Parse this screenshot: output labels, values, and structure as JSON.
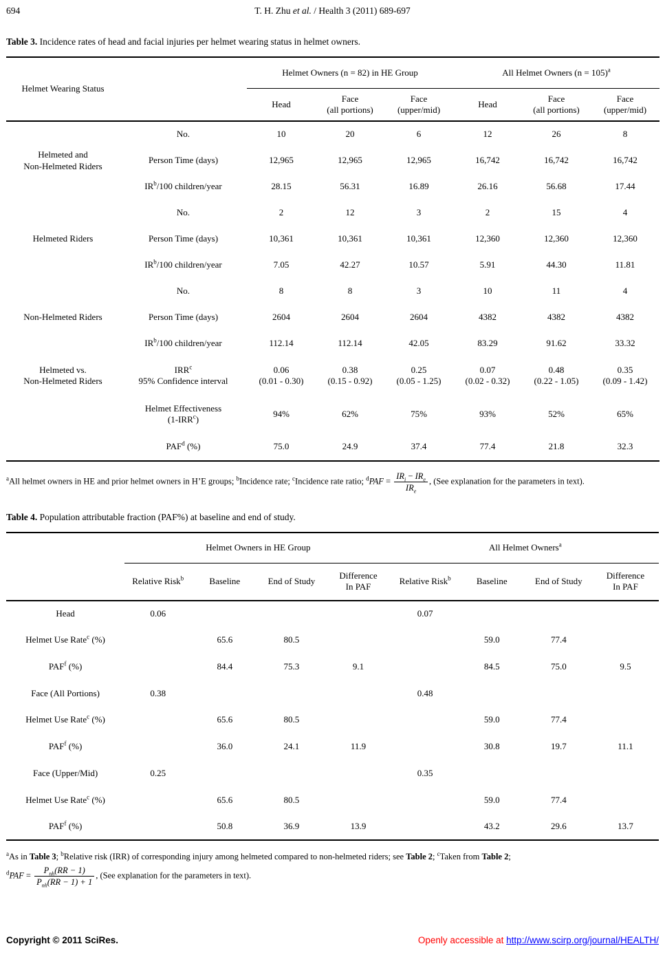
{
  "colors": {
    "text": "#000000",
    "open_access_red": "#ff0000",
    "link_blue": "#0000ff"
  },
  "header": {
    "page_number": "694",
    "running_head_pre": "T. H. Zhu ",
    "running_head_italic": "et al.",
    "running_head_post": " / Health 3 (2011) 689-697"
  },
  "table3": {
    "caption_label": "Table 3.",
    "caption_text": " Incidence rates of head and facial injuries per helmet wearing status in helmet owners.",
    "stub_header": "Helmet Wearing Status",
    "group1_title": "Helmet Owners (n = 82) in HE Group",
    "group2_title": "All Helmet Owners (n = 105)",
    "group2_sup": "a",
    "cols": [
      {
        "l1": "Head",
        "l2": ""
      },
      {
        "l1": "Face",
        "l2": "(all portions)"
      },
      {
        "l1": "Face",
        "l2": "(upper/mid)"
      },
      {
        "l1": "Head",
        "l2": ""
      },
      {
        "l1": "Face",
        "l2": "(all portions)"
      },
      {
        "l1": "Face",
        "l2": "(upper/mid)"
      }
    ],
    "row_labels": {
      "no": "No.",
      "person_time": "Person Time (days)",
      "ir_pre": "IR",
      "ir_sup": "b",
      "ir_post": "/100 children/year",
      "irr_pre": "IRR",
      "irr_sup": "c",
      "ci": "95% Confidence interval",
      "eff_l1": "Helmet Effectiveness",
      "eff_l2_pre": "(1-IRR",
      "eff_l2_sup": "c",
      "eff_l2_post": ")",
      "paf_pre": "PAF",
      "paf_sup": "d",
      "paf_post": " (%)"
    },
    "groups": [
      {
        "label_l1": "Helmeted and",
        "label_l2": "Non-Helmeted Riders",
        "no": [
          "10",
          "20",
          "6",
          "12",
          "26",
          "8"
        ],
        "person_time": [
          "12,965",
          "12,965",
          "12,965",
          "16,742",
          "16,742",
          "16,742"
        ],
        "ir": [
          "28.15",
          "56.31",
          "16.89",
          "26.16",
          "56.68",
          "17.44"
        ]
      },
      {
        "label_l1": "Helmeted Riders",
        "label_l2": "",
        "no": [
          "2",
          "12",
          "3",
          "2",
          "15",
          "4"
        ],
        "person_time": [
          "10,361",
          "10,361",
          "10,361",
          "12,360",
          "12,360",
          "12,360"
        ],
        "ir": [
          "7.05",
          "42.27",
          "10.57",
          "5.91",
          "44.30",
          "11.81"
        ]
      },
      {
        "label_l1": "Non-Helmeted Riders",
        "label_l2": "",
        "no": [
          "8",
          "8",
          "3",
          "10",
          "11",
          "4"
        ],
        "person_time": [
          "2604",
          "2604",
          "2604",
          "4382",
          "4382",
          "4382"
        ],
        "ir": [
          "112.14",
          "112.14",
          "42.05",
          "83.29",
          "91.62",
          "33.32"
        ]
      }
    ],
    "comparison": {
      "label_l1": "Helmeted vs.",
      "label_l2": "Non-Helmeted Riders",
      "irr": [
        "0.06",
        "0.38",
        "0.25",
        "0.07",
        "0.48",
        "0.35"
      ],
      "ci": [
        "(0.01 - 0.30)",
        "(0.15 - 0.92)",
        "(0.05 - 1.25)",
        "(0.02 - 0.32)",
        "(0.22 - 1.05)",
        "(0.09 - 1.42)"
      ],
      "effectiveness": [
        "94%",
        "62%",
        "75%",
        "93%",
        "52%",
        "65%"
      ],
      "paf": [
        "75.0",
        "24.9",
        "37.4",
        "77.4",
        "21.8",
        "32.3"
      ]
    },
    "footnote": {
      "sup_a": "a",
      "text_a": "All helmet owners in HE and prior helmet owners in H’E groups; ",
      "sup_b": "b",
      "text_b": "Incidence rate; ",
      "sup_c": "c",
      "text_c": "Incidence rate ratio; ",
      "sup_d": "d",
      "formula_paf": "PAF",
      "formula_eq": " = ",
      "num_p1": "IR",
      "num_sub1": "i",
      "num_minus": " − ",
      "num_p2": "IR",
      "num_sub2": "e",
      "den_p": "IR",
      "den_sub": "e",
      "tail": ", (See explanation for the parameters in text)."
    }
  },
  "table4": {
    "caption_label": "Table 4.",
    "caption_text": " Population attributable fraction (PAF%) at baseline and end of study.",
    "group1_title": "Helmet Owners in HE Group",
    "group2_title": "All Helmet Owners",
    "group2_sup": "a",
    "col_rr": "Relative Risk",
    "col_rr_sup": "b",
    "col_baseline": "Baseline",
    "col_end": "End of Study",
    "col_diff_l1": "Difference",
    "col_diff_l2": "In PAF",
    "rows": [
      {
        "label_pre": "Head",
        "label_sup": "",
        "label_post": "",
        "values": [
          "0.06",
          "",
          "",
          "",
          "0.07",
          "",
          "",
          ""
        ]
      },
      {
        "label_pre": "Helmet Use Rate",
        "label_sup": "c",
        "label_post": " (%)",
        "values": [
          "",
          "65.6",
          "80.5",
          "",
          "",
          "59.0",
          "77.4",
          ""
        ]
      },
      {
        "label_pre": "PAF",
        "label_sup": "f",
        "label_post": " (%)",
        "values": [
          "",
          "84.4",
          "75.3",
          "9.1",
          "",
          "84.5",
          "75.0",
          "9.5"
        ]
      },
      {
        "label_pre": "Face (All Portions)",
        "label_sup": "",
        "label_post": "",
        "values": [
          "0.38",
          "",
          "",
          "",
          "0.48",
          "",
          "",
          ""
        ]
      },
      {
        "label_pre": "Helmet Use Rate",
        "label_sup": "c",
        "label_post": " (%)",
        "values": [
          "",
          "65.6",
          "80.5",
          "",
          "",
          "59.0",
          "77.4",
          ""
        ]
      },
      {
        "label_pre": "PAF",
        "label_sup": "f",
        "label_post": " (%)",
        "values": [
          "",
          "36.0",
          "24.1",
          "11.9",
          "",
          "30.8",
          "19.7",
          "11.1"
        ]
      },
      {
        "label_pre": "Face (Upper/Mid)",
        "label_sup": "",
        "label_post": "",
        "values": [
          "0.25",
          "",
          "",
          "",
          "0.35",
          "",
          "",
          ""
        ]
      },
      {
        "label_pre": "Helmet Use Rate",
        "label_sup": "c",
        "label_post": " (%)",
        "values": [
          "",
          "65.6",
          "80.5",
          "",
          "",
          "59.0",
          "77.4",
          ""
        ]
      },
      {
        "label_pre": "PAF",
        "label_sup": "f",
        "label_post": " (%)",
        "values": [
          "",
          "50.8",
          "36.9",
          "13.9",
          "",
          "43.2",
          "29.6",
          "13.7"
        ]
      }
    ],
    "footnote": {
      "sup_a": "a",
      "text_a1": "As in ",
      "bold_a": "Table 3",
      "text_a2": "; ",
      "sup_b": "b",
      "text_b1": "Relative risk (IRR) of corresponding injury among helmeted compared to non-helmeted riders; see ",
      "bold_b": "Table 2",
      "text_b2": "; ",
      "sup_c": "c",
      "text_c1": "Taken from ",
      "bold_c": "Table 2",
      "text_c2": ";",
      "sup_d": "d",
      "formula_paf": "PAF",
      "formula_eq": " = ",
      "num_p": "P",
      "num_sub": "nh",
      "num_rest": "(RR − 1)",
      "den_p": "P",
      "den_sub": "nh",
      "den_rest": "(RR − 1) + 1",
      "tail": ", (See explanation for the parameters in text)."
    }
  },
  "footer": {
    "copyright": "Copyright © 2011 SciRes.",
    "access_text": "Openly accessible at ",
    "access_link": "http://www.scirp.org/journal/HEALTH/"
  }
}
